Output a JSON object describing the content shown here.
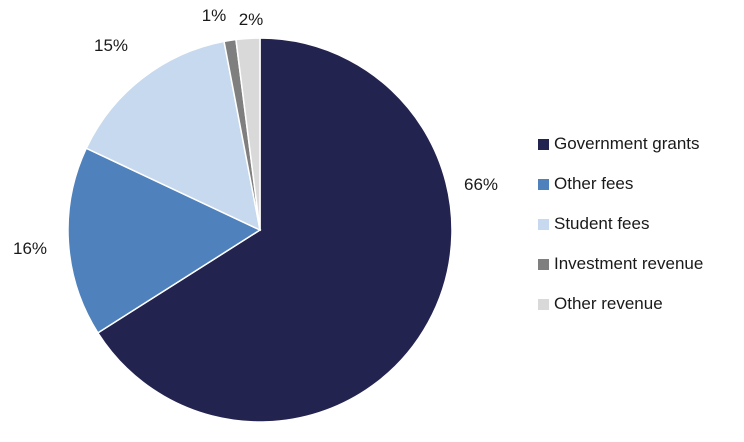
{
  "chart_data": {
    "type": "pie",
    "categories": [
      "Government grants",
      "Other fees",
      "Student fees",
      "Investment revenue",
      "Other revenue"
    ],
    "values": [
      66,
      16,
      15,
      1,
      2
    ],
    "value_labels": [
      "66%",
      "16%",
      "15%",
      "1%",
      "2%"
    ],
    "colors": [
      "#23234f",
      "#4f81bd",
      "#c6d9ee",
      "#7f7f7f",
      "#d9d9d9"
    ],
    "legend_position": "right",
    "start_angle": "top, clockwise"
  }
}
